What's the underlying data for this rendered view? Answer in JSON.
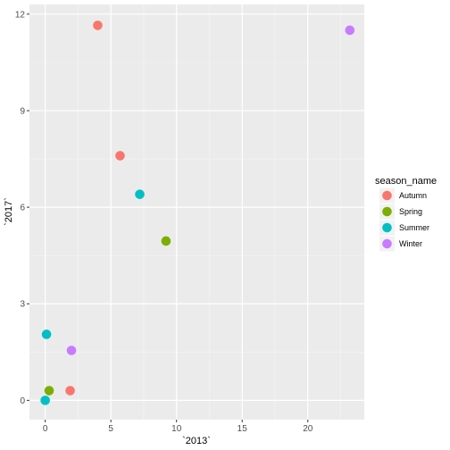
{
  "chart_data": {
    "type": "scatter",
    "xlabel": "`2013`",
    "ylabel": "`2017`",
    "xlim": [
      -1.2,
      24.3
    ],
    "ylim": [
      -0.6,
      12.3
    ],
    "x_ticks": [
      0,
      5,
      10,
      15,
      20
    ],
    "x_tick_labels": [
      "0",
      "5",
      "10",
      "15",
      "20"
    ],
    "y_ticks": [
      0,
      3,
      6,
      9,
      12
    ],
    "y_tick_labels": [
      "0",
      "3",
      "6",
      "9",
      "12"
    ],
    "grid": true,
    "legend": {
      "title": "season_name",
      "placement": "right",
      "entries": [
        {
          "label": "Autumn",
          "color": "#F8766D"
        },
        {
          "label": "Spring",
          "color": "#7CAE00"
        },
        {
          "label": "Summer",
          "color": "#00BFC4"
        },
        {
          "label": "Winter",
          "color": "#C77CFF"
        }
      ]
    },
    "points": [
      {
        "x": 4.0,
        "y": 11.65,
        "season": "Autumn"
      },
      {
        "x": 5.7,
        "y": 7.6,
        "season": "Autumn"
      },
      {
        "x": 1.9,
        "y": 0.3,
        "season": "Autumn"
      },
      {
        "x": 9.2,
        "y": 4.95,
        "season": "Spring"
      },
      {
        "x": 0.3,
        "y": 0.3,
        "season": "Spring"
      },
      {
        "x": 7.2,
        "y": 6.4,
        "season": "Summer"
      },
      {
        "x": 0.1,
        "y": 2.05,
        "season": "Summer"
      },
      {
        "x": 0.0,
        "y": 0.0,
        "season": "Summer"
      },
      {
        "x": 23.2,
        "y": 11.5,
        "season": "Winter"
      },
      {
        "x": 2.0,
        "y": 1.55,
        "season": "Winter"
      }
    ]
  }
}
